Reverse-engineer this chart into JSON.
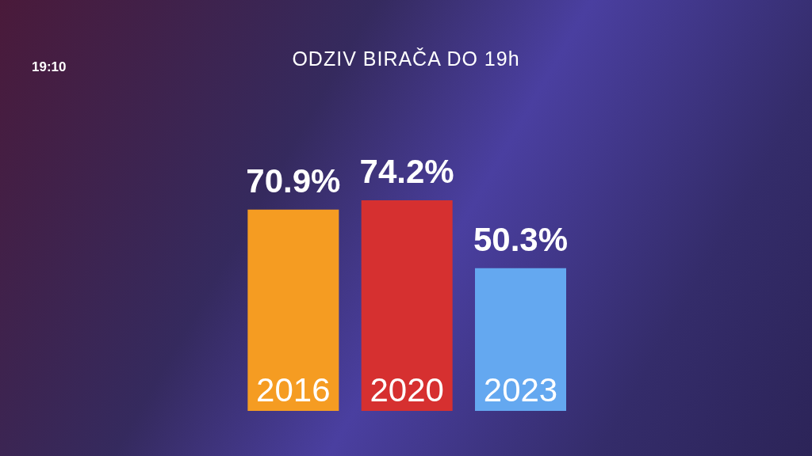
{
  "chart_data": {
    "type": "bar",
    "title": "ODZIV BIRAČA DO 19h",
    "categories": [
      "2016",
      "2020",
      "2023"
    ],
    "values": [
      70.9,
      74.2,
      50.3
    ],
    "colors": [
      "#f59c22",
      "#d63030",
      "#64a8f0"
    ],
    "value_labels": [
      "70.9%",
      "74.2%",
      "50.3%"
    ],
    "annotations": [
      "19:10"
    ],
    "grid": false,
    "legend": false
  }
}
